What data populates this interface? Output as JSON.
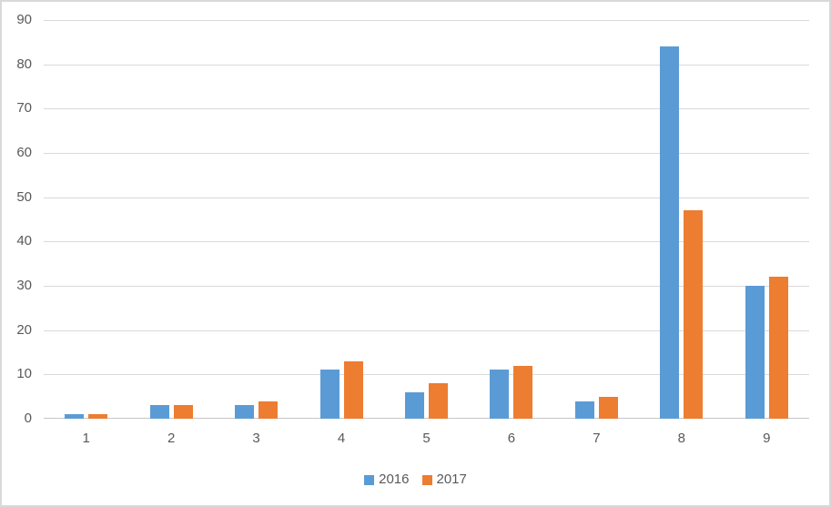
{
  "chart": {
    "background": "#ffffff",
    "border_color": "#d9d9d9",
    "gridline_color": "#d9d9d9",
    "axis_line_color": "#c6c6c6",
    "tick_label_color": "#595959"
  },
  "chart_data": {
    "type": "bar",
    "title": "",
    "xlabel": "",
    "ylabel": "",
    "categories": [
      "1",
      "2",
      "3",
      "4",
      "5",
      "6",
      "7",
      "8",
      "9"
    ],
    "series": [
      {
        "name": "2016",
        "color": "#5b9bd5",
        "values": [
          1,
          3,
          3,
          11,
          6,
          11,
          4,
          84,
          30
        ]
      },
      {
        "name": "2017",
        "color": "#ed7d31",
        "values": [
          1,
          3,
          4,
          13,
          8,
          12,
          5,
          47,
          32
        ]
      }
    ],
    "ylim": [
      0,
      90
    ],
    "ytick_interval": 10,
    "yticks": [
      0,
      10,
      20,
      30,
      40,
      50,
      60,
      70,
      80,
      90
    ],
    "grid": true,
    "legend_position": "bottom"
  }
}
